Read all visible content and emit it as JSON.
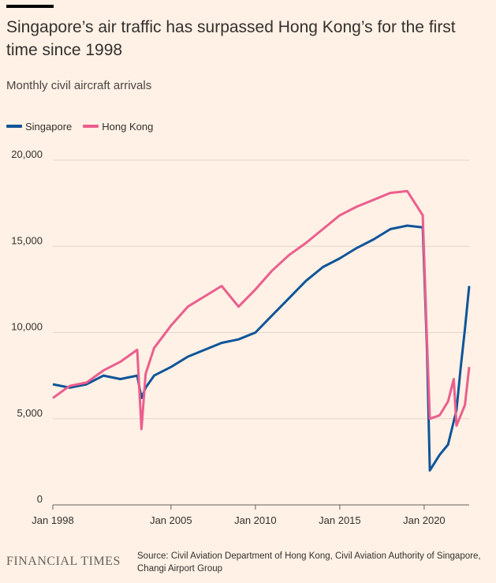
{
  "header": {
    "title": "Singapore’s air traffic has surpassed Hong Kong’s for the first time since 1998",
    "subtitle": "Monthly civil aircraft arrivals"
  },
  "legend": [
    {
      "label": "Singapore",
      "color": "#0f5499"
    },
    {
      "label": "Hong Kong",
      "color": "#eb5e8d"
    }
  ],
  "footer": {
    "logo": "FINANCIAL TIMES",
    "source": "Source: Civil Aviation Department of Hong Kong, Civil Aviation Authority of Singapore, Changi Airport Group"
  },
  "chart_data": {
    "type": "line",
    "title": "Singapore’s air traffic has surpassed Hong Kong’s for the first time since 1998",
    "subtitle": "Monthly civil aircraft arrivals",
    "xlabel": "",
    "ylabel": "",
    "xlim": [
      "1998-01",
      "2022-09"
    ],
    "ylim": [
      0,
      20000
    ],
    "y_ticks": [
      {
        "value": 0,
        "label": "0"
      },
      {
        "value": 5000,
        "label": "5,000"
      },
      {
        "value": 10000,
        "label": "10,000"
      },
      {
        "value": 15000,
        "label": "15,000"
      },
      {
        "value": 20000,
        "label": "20,000"
      }
    ],
    "x_ticks": [
      {
        "value": "1998-01",
        "label": "Jan 1998"
      },
      {
        "value": "2005-01",
        "label": "Jan 2005"
      },
      {
        "value": "2010-01",
        "label": "Jan 2010"
      },
      {
        "value": "2015-01",
        "label": "Jan 2015"
      },
      {
        "value": "2020-01",
        "label": "Jan 2020"
      }
    ],
    "grid": true,
    "legend_position": "top-left",
    "series": [
      {
        "name": "Singapore",
        "color": "#0f5499",
        "points": [
          {
            "x": "1998-01",
            "y": 7000
          },
          {
            "x": "1999-01",
            "y": 6800
          },
          {
            "x": "2000-01",
            "y": 7000
          },
          {
            "x": "2001-01",
            "y": 7500
          },
          {
            "x": "2002-01",
            "y": 7300
          },
          {
            "x": "2003-01",
            "y": 7500
          },
          {
            "x": "2003-04",
            "y": 6200
          },
          {
            "x": "2003-07",
            "y": 6800
          },
          {
            "x": "2004-01",
            "y": 7500
          },
          {
            "x": "2005-01",
            "y": 8000
          },
          {
            "x": "2006-01",
            "y": 8600
          },
          {
            "x": "2007-01",
            "y": 9000
          },
          {
            "x": "2008-01",
            "y": 9400
          },
          {
            "x": "2009-01",
            "y": 9600
          },
          {
            "x": "2010-01",
            "y": 10000
          },
          {
            "x": "2011-01",
            "y": 11000
          },
          {
            "x": "2012-01",
            "y": 12000
          },
          {
            "x": "2013-01",
            "y": 13000
          },
          {
            "x": "2014-01",
            "y": 13800
          },
          {
            "x": "2015-01",
            "y": 14300
          },
          {
            "x": "2016-01",
            "y": 14900
          },
          {
            "x": "2017-01",
            "y": 15400
          },
          {
            "x": "2018-01",
            "y": 16000
          },
          {
            "x": "2019-01",
            "y": 16200
          },
          {
            "x": "2019-12",
            "y": 16100
          },
          {
            "x": "2020-03",
            "y": 9000
          },
          {
            "x": "2020-05",
            "y": 2000
          },
          {
            "x": "2020-12",
            "y": 2900
          },
          {
            "x": "2021-06",
            "y": 3500
          },
          {
            "x": "2021-12",
            "y": 5500
          },
          {
            "x": "2022-03",
            "y": 8000
          },
          {
            "x": "2022-06",
            "y": 10200
          },
          {
            "x": "2022-09",
            "y": 12700
          }
        ]
      },
      {
        "name": "Hong Kong",
        "color": "#eb5e8d",
        "points": [
          {
            "x": "1998-01",
            "y": 6200
          },
          {
            "x": "1999-01",
            "y": 6900
          },
          {
            "x": "2000-01",
            "y": 7100
          },
          {
            "x": "2001-01",
            "y": 7800
          },
          {
            "x": "2002-01",
            "y": 8300
          },
          {
            "x": "2003-01",
            "y": 9000
          },
          {
            "x": "2003-04",
            "y": 4400
          },
          {
            "x": "2003-07",
            "y": 7600
          },
          {
            "x": "2004-01",
            "y": 9100
          },
          {
            "x": "2005-01",
            "y": 10400
          },
          {
            "x": "2006-01",
            "y": 11500
          },
          {
            "x": "2007-01",
            "y": 12100
          },
          {
            "x": "2008-01",
            "y": 12700
          },
          {
            "x": "2009-01",
            "y": 11500
          },
          {
            "x": "2010-01",
            "y": 12500
          },
          {
            "x": "2011-01",
            "y": 13600
          },
          {
            "x": "2012-01",
            "y": 14500
          },
          {
            "x": "2013-01",
            "y": 15200
          },
          {
            "x": "2014-01",
            "y": 16000
          },
          {
            "x": "2015-01",
            "y": 16800
          },
          {
            "x": "2016-01",
            "y": 17300
          },
          {
            "x": "2017-01",
            "y": 17700
          },
          {
            "x": "2018-01",
            "y": 18100
          },
          {
            "x": "2019-01",
            "y": 18200
          },
          {
            "x": "2019-12",
            "y": 16800
          },
          {
            "x": "2020-03",
            "y": 9500
          },
          {
            "x": "2020-05",
            "y": 5000
          },
          {
            "x": "2020-12",
            "y": 5200
          },
          {
            "x": "2021-06",
            "y": 6000
          },
          {
            "x": "2021-10",
            "y": 7300
          },
          {
            "x": "2021-12",
            "y": 4600
          },
          {
            "x": "2022-03",
            "y": 5200
          },
          {
            "x": "2022-06",
            "y": 5800
          },
          {
            "x": "2022-09",
            "y": 8000
          }
        ]
      }
    ]
  }
}
